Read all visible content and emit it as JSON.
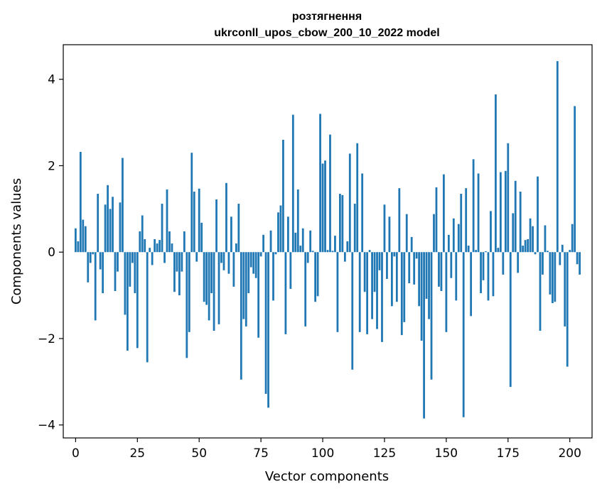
{
  "chart_data": {
    "type": "bar",
    "title_line1": "розтягнення",
    "title_line2": "ukrconll_upos_cbow_200_10_2022 model",
    "xlabel": "Vector components",
    "ylabel": "Components values",
    "xlim": [
      -5,
      209
    ],
    "ylim": [
      -4.3,
      4.8
    ],
    "xticks": [
      0,
      25,
      50,
      75,
      100,
      125,
      150,
      175,
      200
    ],
    "yticks": [
      -4,
      -2,
      0,
      2,
      4
    ],
    "bar_color": "#1f77b4",
    "grid": false,
    "legend": "none",
    "values": [
      0.55,
      0.25,
      2.32,
      0.75,
      0.6,
      -0.7,
      -0.25,
      -0.05,
      -1.58,
      1.35,
      -0.4,
      -0.95,
      1.1,
      1.55,
      1.0,
      1.28,
      -0.9,
      -0.45,
      1.15,
      2.18,
      -1.45,
      -2.28,
      -0.8,
      -0.25,
      -0.95,
      -2.22,
      0.48,
      0.85,
      0.3,
      -2.55,
      0.1,
      -0.3,
      0.3,
      0.2,
      0.28,
      1.12,
      -0.25,
      1.45,
      0.48,
      0.2,
      -0.92,
      -0.45,
      -1.0,
      -0.45,
      0.48,
      -2.45,
      -1.85,
      2.3,
      1.4,
      -0.22,
      1.47,
      0.68,
      -1.15,
      -1.22,
      -1.58,
      -0.95,
      -1.82,
      1.22,
      -1.67,
      -0.25,
      -0.42,
      1.6,
      -0.5,
      0.82,
      -0.8,
      0.2,
      1.12,
      -2.95,
      -1.55,
      -1.72,
      -0.95,
      -0.35,
      -0.5,
      -0.6,
      -1.98,
      -0.1,
      0.4,
      -3.28,
      -3.6,
      0.5,
      -1.12,
      -0.05,
      0.92,
      1.08,
      2.6,
      -1.9,
      0.82,
      -0.85,
      3.18,
      0.45,
      1.45,
      0.15,
      0.55,
      -1.72,
      -0.25,
      0.5,
      0.03,
      -1.15,
      -1.02,
      3.2,
      2.05,
      2.12,
      0.05,
      2.72,
      0.03,
      0.38,
      -1.85,
      1.35,
      1.32,
      -0.22,
      0.25,
      2.28,
      -2.72,
      1.12,
      2.52,
      -1.85,
      1.82,
      -0.92,
      -1.9,
      0.05,
      -1.55,
      -0.92,
      -1.78,
      -0.42,
      -2.08,
      1.1,
      -0.62,
      0.82,
      -1.25,
      -0.1,
      -1.15,
      1.48,
      -1.92,
      -1.62,
      0.88,
      -0.72,
      0.35,
      -0.75,
      -0.15,
      -1.25,
      -2.05,
      -3.85,
      -1.08,
      -1.55,
      -2.95,
      0.88,
      1.5,
      -0.8,
      -0.9,
      1.8,
      -1.85,
      0.4,
      -0.6,
      0.78,
      -1.12,
      0.65,
      1.35,
      -3.82,
      1.48,
      0.15,
      -1.48,
      2.15,
      0.05,
      1.82,
      -0.95,
      -0.65,
      0.02,
      -1.12,
      0.95,
      -1.02,
      3.65,
      0.1,
      1.85,
      -0.52,
      1.88,
      2.52,
      -3.12,
      0.9,
      1.65,
      -0.48,
      1.4,
      0.15,
      0.28,
      0.3,
      0.78,
      0.6,
      -0.05,
      1.75,
      -1.82,
      -0.52,
      0.62,
      0.03,
      -0.98,
      -1.18,
      -1.15,
      4.42,
      -0.3,
      0.17,
      -1.72,
      -2.65,
      0.05,
      0.65,
      3.38,
      -0.28,
      -0.52
    ]
  }
}
